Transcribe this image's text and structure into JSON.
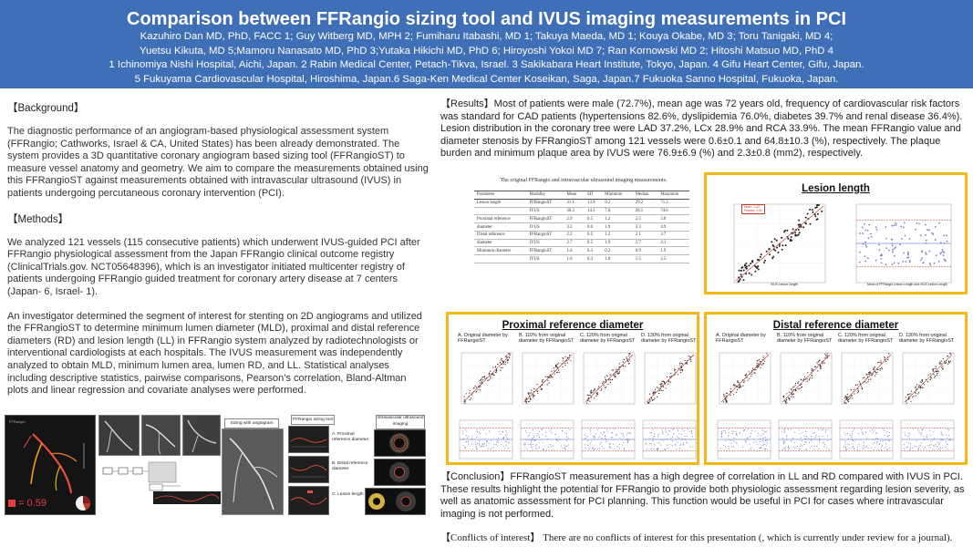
{
  "header": {
    "title": "Comparison between FFRangio sizing tool and IVUS imaging measurements in PCI",
    "authors_1": "Kazuhiro Dan MD, PhD, FACC 1; Guy Witberg MD, MPH 2; Fumiharu Itabashi, MD 1; Takuya Maeda, MD 1; Kouya Okabe, MD 3; Toru Tanigaki, MD 4;",
    "authors_2": "Yuetsu Kikuta, MD 5;Mamoru Nanasato MD, PhD 3;Yutaka Hikichi MD, PhD 6; Hiroyoshi Yokoi MD 7; Ran Kornowski MD 2; Hitoshi Matsuo MD, PhD 4",
    "affil_1": "1 Ichinomiya Nishi Hospital, Aichi, Japan. 2 Rabin Medical Center, Petach-Tikva, Israel. 3 Sakikabara Heart Institute, Tokyo, Japan. 4 Gifu Heart Center, Gifu, Japan.",
    "affil_2": "5 Fukuyama Cardiovascular Hospital, Hiroshima, Japan.6 Saga-Ken Medical Center Koseikan, Saga, Japan.7 Fukuoka Sanno Hospital, Fukuoka, Japan."
  },
  "background": {
    "heading": "【Background】",
    "text": "The diagnostic performance of an angiogram-based physiological assessment system (FFRangio; Cathworks, Israel & CA, United States) has been already demonstrated. The system provides a 3D quantitative coronary angiogram based sizing tool (FFRangioST) to measure vessel anatomy and geometry. We aim to compare the measurements obtained using this FFRangioST against measurements obtained with intravascular ultrasound (IVUS) in patients undergoing percutaneous coronary intervention (PCI)."
  },
  "methods": {
    "heading": "【Methods】",
    "text1": "We analyzed 121 vessels (115 consecutive patients) which underwent IVUS-guided PCI after FFRangio physiological assessment from the Japan FFRangio clinical outcome registry (ClinicalTrials.gov. NCT05648396), which is an investigator initiated multicenter registry of patients undergoing FFRangio guided treatment for coronary artery disease at 7 centers (Japan- 6, Israel- 1).",
    "text2": "An investigator determined the segment of interest for stenting on 2D angiograms and utilized the FFRangioST to determine minimum lumen diameter (MLD), proximal and distal reference diameters (RD) and lesion length (LL) in FFRangio system analyzed by radiotechnologists or interventional cardiologists at each hospitals. The IVUS measurement was independently analyzed to obtain MLD, minimum lumen area, lumen RD, and LL. Statistical analyses including descriptive statistics, pairwise comparisons, Pearson’s correlation, Bland-Altman plots and linear regression and covariate analyses were performed."
  },
  "results": {
    "text": "【Results】Most of patients were male (72.7%), mean age was 72 years old, frequency of cardiovascular risk factors was standard for CAD patients (hypertensions 82.6%, dyslipidemia 76.0%, diabetes 39.7% and renal disease 36.4%). Lesion distribution in the coronary tree were LAD 37.2%, LCx 28.9% and RCA 33.9%. The mean FFRangio value and diameter stenosis by FFRangioST among 121 vessels were 0.6±0.1 and 64.8±10.3 (%), respectively. The plaque burden and minimum plaque area by IVUS were 76.9±6.9 (%) and 2.3±0.8 (mm2), respectively."
  },
  "table": {
    "caption": "The original FFRangio and intravascular ultrasound imaging measurements.",
    "columns": [
      "Parameter",
      "Modality",
      "Mean",
      "SD",
      "Minimum",
      "Median",
      "Maximum"
    ],
    "rows": [
      [
        "Lesion length",
        "FFRangioST",
        "31.1",
        "13.9",
        "9.2",
        "29.2",
        "71.2"
      ],
      [
        "",
        "IVUS",
        "30.3",
        "14.3",
        "7.0",
        "28.1",
        "74.6"
      ],
      [
        "Proximal reference",
        "FFRangioST",
        "2.9",
        "0.5",
        "1.2",
        "2.5",
        "3.8"
      ],
      [
        "diameter",
        "IVUS",
        "3.2",
        "0.6",
        "1.9",
        "3.3",
        "4.9"
      ],
      [
        "Distal reference",
        "FFRangioST",
        "2.2",
        "0.5",
        "1.2",
        "2.1",
        "3.7"
      ],
      [
        "diameter",
        "IVUS",
        "2.7",
        "0.5",
        "1.9",
        "2.7",
        "4.1"
      ],
      [
        "Minimum diameter",
        "FFRangioST",
        "1.0",
        "0.3",
        "0.2",
        "0.9",
        "1.9"
      ],
      [
        "",
        "IVUS",
        "1.6",
        "0.3",
        "1.0",
        "1.5",
        "2.5"
      ]
    ]
  },
  "lesion_panel": {
    "title": "Lesion length",
    "stats": "Mean   0.43\nPearson  0.50",
    "xlabel_left": "IVUS Lesion Length",
    "xlabel_right": "Mean of FFRangio Lesion Length and IVUS Lesion Length"
  },
  "proximal_panel": {
    "title": "Proximal reference diameter",
    "subs": [
      {
        "label": "A. Original diameter by FFRangioST"
      },
      {
        "label": "B. 110% from original diameter by FFRangioST"
      },
      {
        "label": "C. 120% from original diameter by FFRangioST"
      },
      {
        "label": "D. 130% from original diameter by FFRangioST"
      }
    ]
  },
  "distal_panel": {
    "title": "Distal reference diameter",
    "subs": [
      {
        "label": "A. Original diameter by FFRangioST"
      },
      {
        "label": "B. 110% from original diameter by FFRangioST"
      },
      {
        "label": "C. 120% from original diameter by FFRangioST"
      },
      {
        "label": "D. 130% from original diameter by FFRangioST"
      }
    ]
  },
  "figure": {
    "ffr_value": "= 0.59",
    "sizing_label": "Sizing with angiogram",
    "tool_label": "FFRangio sizing tool",
    "ivus_label": "Intravascular ultrasound imaging",
    "steps": [
      "A. Proximal reference diameter",
      "B. Distal reference diameter",
      "C. Lesion length"
    ]
  },
  "conclusion": {
    "text": "【Conclusion】FFRangioST measurement has a high degree of correlation in LL and RD compared with IVUS in PCI. These results highlight the potential for FFRangio to provide both physiologic assessment regarding lesion severity, as well as anatomic assessment for PCI planning. This function would be useful in PCI for cases where intravascular imaging is not performed."
  },
  "conflicts": {
    "text": "【Conflicts of interest】 There are no conflicts of interest for this presentation (, which is currently under review for a journal)."
  },
  "colors": {
    "header_bg": "#3f6fb6",
    "panel_border": "#f6b718",
    "scatter_points": "#222222",
    "fit_line": "#c0392b",
    "ba_points": "#7b7fc4"
  }
}
